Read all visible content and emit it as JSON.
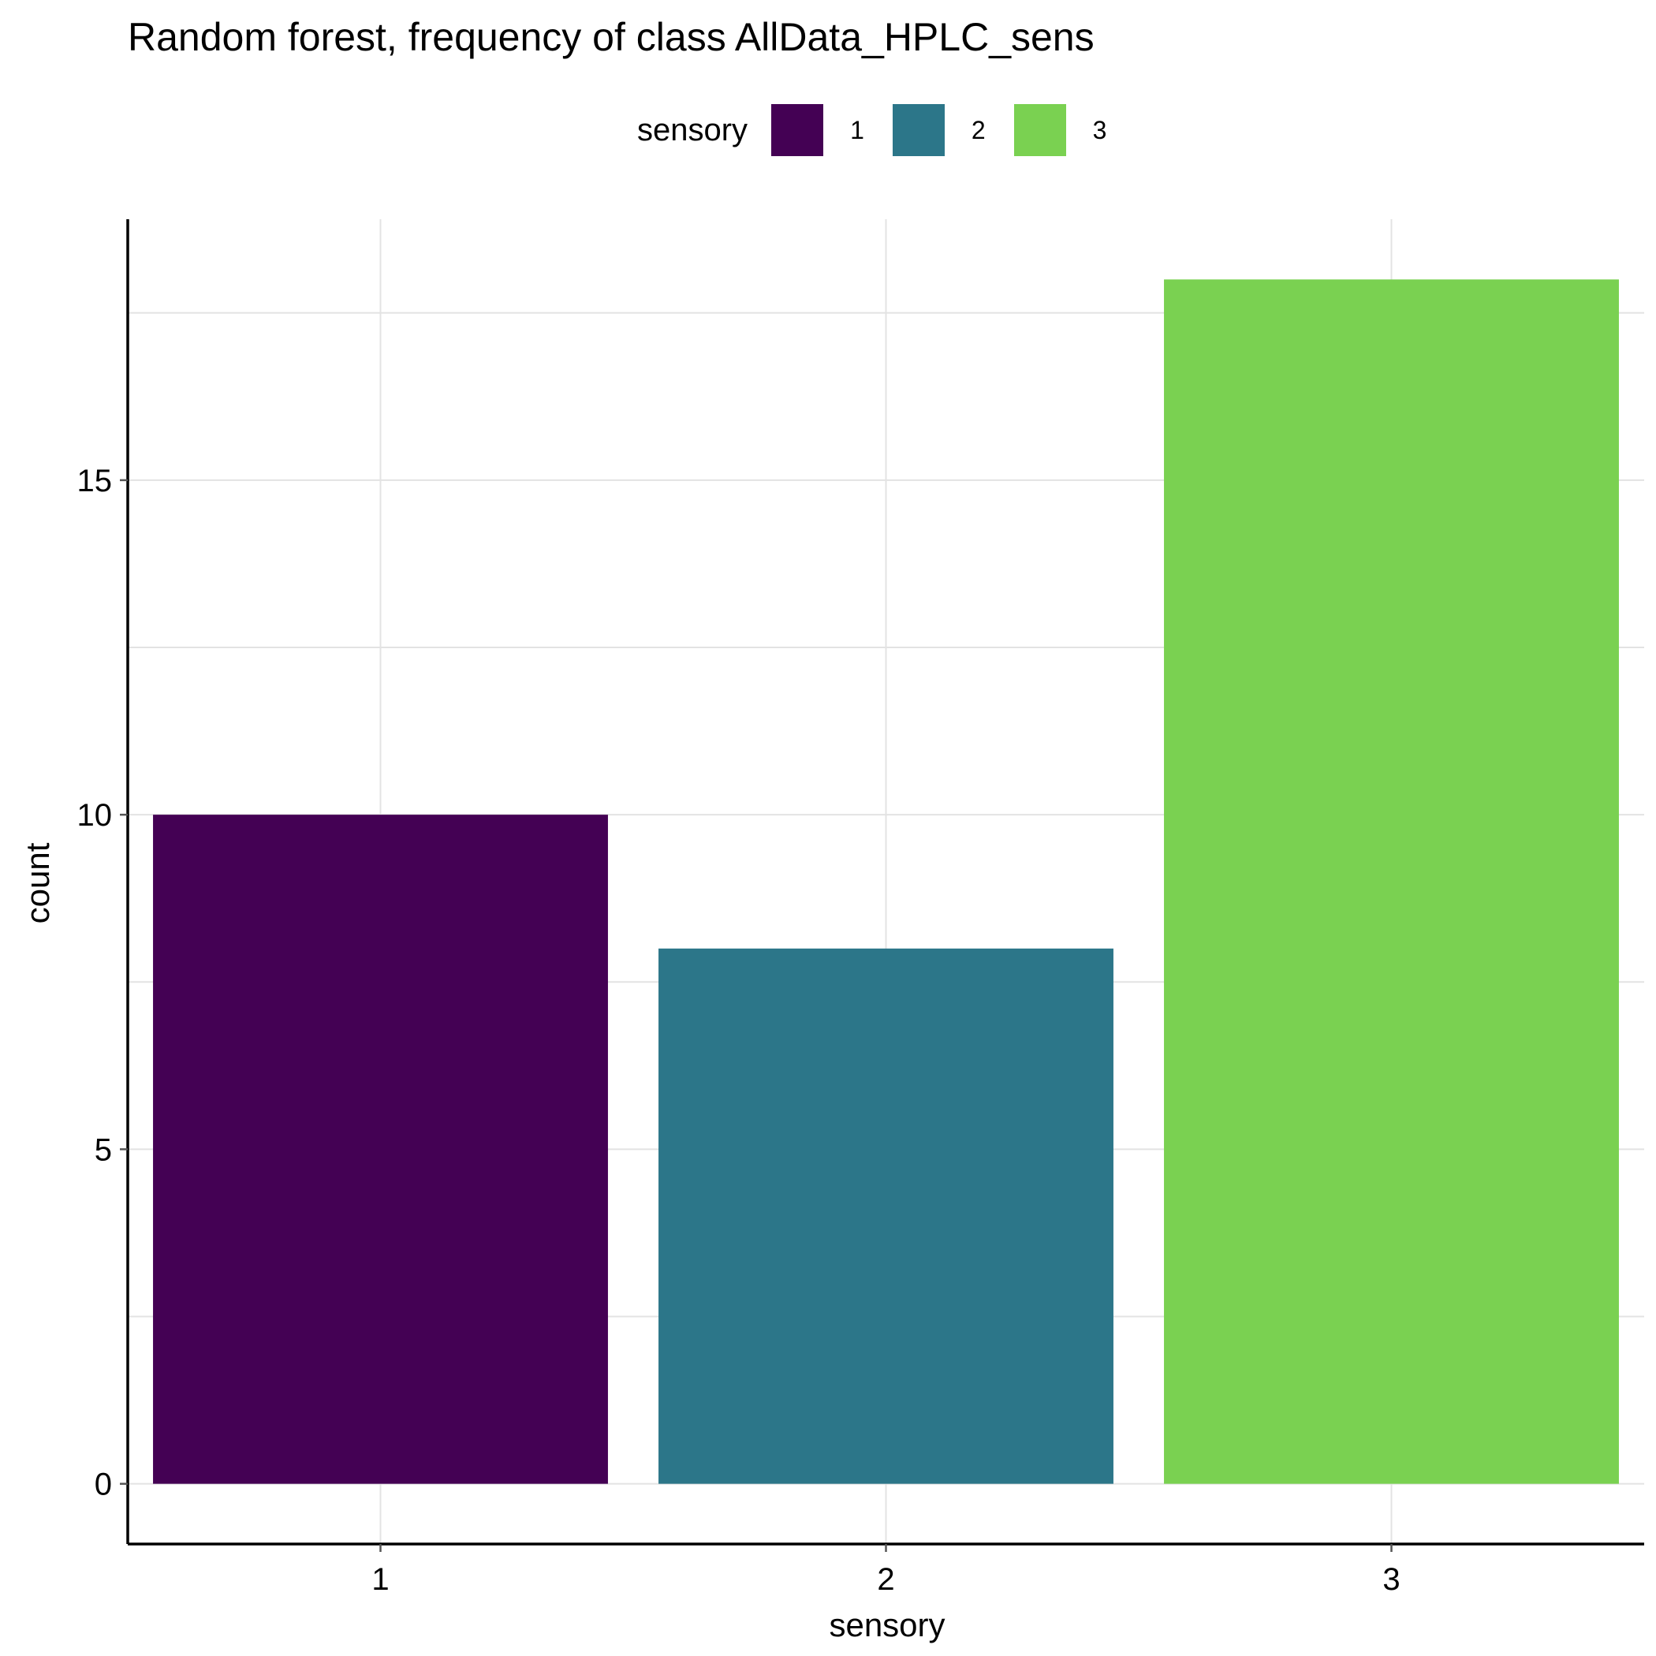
{
  "chart_data": {
    "type": "bar",
    "title": "Random forest, frequency of class AllData_HPLC_sens",
    "xlabel": "sensory",
    "ylabel": "count",
    "categories": [
      "1",
      "2",
      "3"
    ],
    "values": [
      10,
      8,
      18
    ],
    "colors": [
      "#440154",
      "#2C7689",
      "#7AD151"
    ],
    "yticks": [
      0,
      5,
      10,
      15
    ],
    "ylim": [
      -0.9,
      18.9
    ],
    "grid": true,
    "legend": {
      "title": "sensory",
      "position": "top",
      "items": [
        "1",
        "2",
        "3"
      ]
    }
  }
}
